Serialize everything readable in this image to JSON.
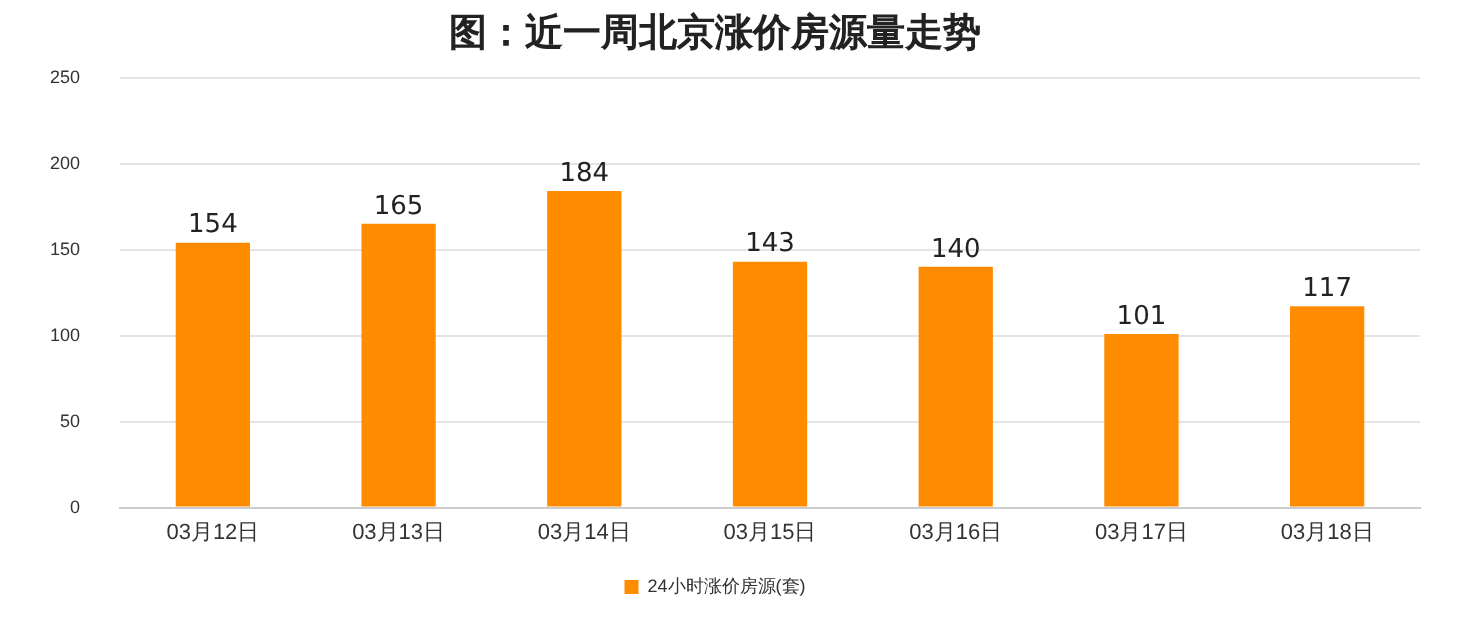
{
  "chart_data": {
    "type": "bar",
    "title": "图：近一周北京涨价房源量走势",
    "categories": [
      "03月12日",
      "03月13日",
      "03月14日",
      "03月15日",
      "03月16日",
      "03月17日",
      "03月18日"
    ],
    "series": [
      {
        "name": "24小时涨价房源(套)",
        "color": "#ff8c00",
        "values": [
          154,
          165,
          184,
          143,
          140,
          101,
          117
        ]
      }
    ],
    "ylim": [
      0,
      250
    ],
    "yticks": [
      0,
      50,
      100,
      150,
      200,
      250
    ],
    "grid": "y",
    "legend": "bottom",
    "data_labels": true
  }
}
